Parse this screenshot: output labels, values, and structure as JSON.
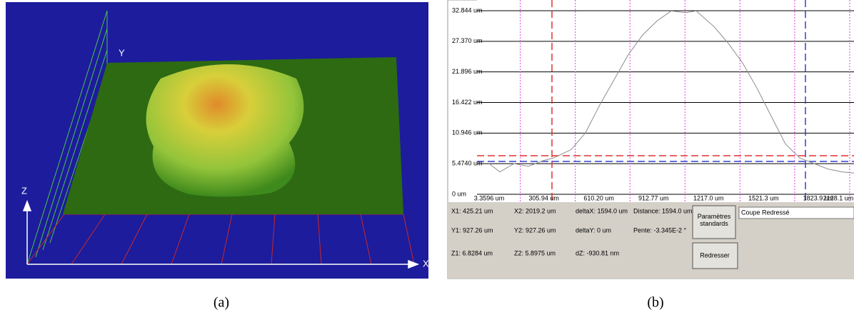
{
  "panel_a": {
    "caption": "(a)",
    "axis_labels": [
      "Y",
      "Z",
      "X"
    ]
  },
  "chart_data": {
    "type": "line",
    "caption": "(b)",
    "x": [
      3.4,
      62.6,
      141.6,
      220.6,
      299.6,
      358.8,
      457.6,
      536.6,
      615.5,
      694.5,
      773.5,
      852.5,
      931.5,
      1010.5,
      1089.5,
      1148.7,
      1247.4,
      1326.4,
      1405.4,
      1484.4,
      1563.4,
      1642.4,
      1721.4,
      1800.4,
      1879.4,
      1958.4,
      2021.6
    ],
    "values": [
      5.5,
      4,
      5.5,
      5,
      6,
      6.5,
      8,
      11,
      16,
      20.5,
      25,
      28.5,
      31,
      32.8,
      32.5,
      32.8,
      30,
      27,
      23.5,
      19,
      14,
      9,
      6.5,
      5.5,
      4.5,
      4,
      3.8
    ],
    "color": "#8c8c8c",
    "xlim": [
      -16.4,
      2021.6
    ],
    "ylim": [
      0,
      32.844
    ],
    "xticks": [
      {
        "value": 3.3596,
        "label": "3.3596 um"
      },
      {
        "value": 305.94,
        "label": "305.94 um"
      },
      {
        "value": 610.2,
        "label": "610.20 um"
      },
      {
        "value": 912.77,
        "label": "912.77 um"
      },
      {
        "value": 1217.0,
        "label": "1217.0 um"
      },
      {
        "value": 1521.3,
        "label": "1521.3 um"
      },
      {
        "value": 1823.9,
        "label": "1823.9 um"
      },
      {
        "value": 2128.1,
        "label": "2128.1 um"
      }
    ],
    "yticks": [
      {
        "value": 0,
        "label": "0 um"
      },
      {
        "value": 5.474,
        "label": "5.4740 um"
      },
      {
        "value": 10.946,
        "label": "10.946 um"
      },
      {
        "value": 16.422,
        "label": "16.422 um"
      },
      {
        "value": 21.896,
        "label": "21.896 um"
      },
      {
        "value": 27.37,
        "label": "27.370 um"
      },
      {
        "value": 32.844,
        "label": "32.844 um"
      }
    ],
    "grid": true
  },
  "panel_b": {
    "readouts": [
      [
        "X1: 425.21 um",
        "X2: 2019.2 um",
        "deltaX: 1594.0 um",
        "Distance: 1594.0 um"
      ],
      [
        "Y1: 927.26 um",
        "Y2: 927.26 um",
        "deltaY: 0 um",
        "Pente: -3.345E-2 °"
      ],
      [
        "Z1: 6.8284 um",
        "Z2: 5.8975 um",
        "dZ: -930.81 nm"
      ]
    ],
    "buttons": [
      "Paramètres standards",
      "Redresser"
    ],
    "input": "Coupe Redressé"
  }
}
